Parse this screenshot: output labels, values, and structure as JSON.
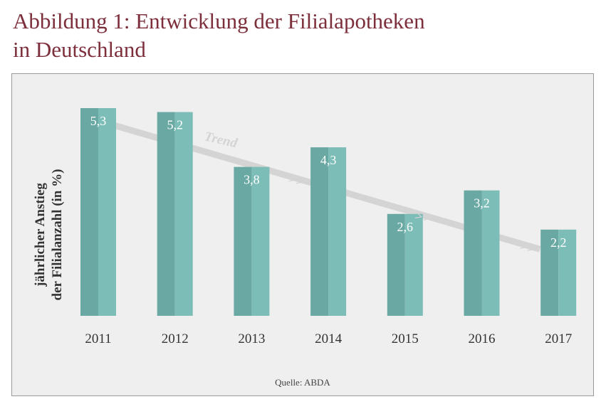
{
  "title_line1": "Abbildung 1: Entwicklung der Filialapotheken",
  "title_line2": "in Deutschland",
  "source": "Quelle: ABDA",
  "colors": {
    "title": "#7d2e3b",
    "bar_dark": "#6aa8a3",
    "bar_light": "#7dbdb7",
    "trend": "#d4d4d4",
    "panel": "#efefef"
  },
  "chart_data": {
    "type": "bar",
    "title": "Abbildung 1: Entwicklung der Filialapotheken in Deutschland",
    "ylabel_line1": "jährlicher Anstieg",
    "ylabel_line2": "der Filialanzahl (in %)",
    "categories": [
      "2011",
      "2012",
      "2013",
      "2014",
      "2015",
      "2016",
      "2017"
    ],
    "values": [
      5.3,
      5.2,
      3.8,
      4.3,
      2.6,
      3.2,
      2.2
    ],
    "value_labels": [
      "5,3",
      "5,2",
      "3,8",
      "4,3",
      "2,6",
      "3,2",
      "2,2"
    ],
    "ylim": [
      0,
      5.3
    ],
    "grid": false,
    "trend_label": "Trend",
    "trend_arrow_glyph": ">>",
    "trend_start": 5.3,
    "trend_end": 1.7
  }
}
